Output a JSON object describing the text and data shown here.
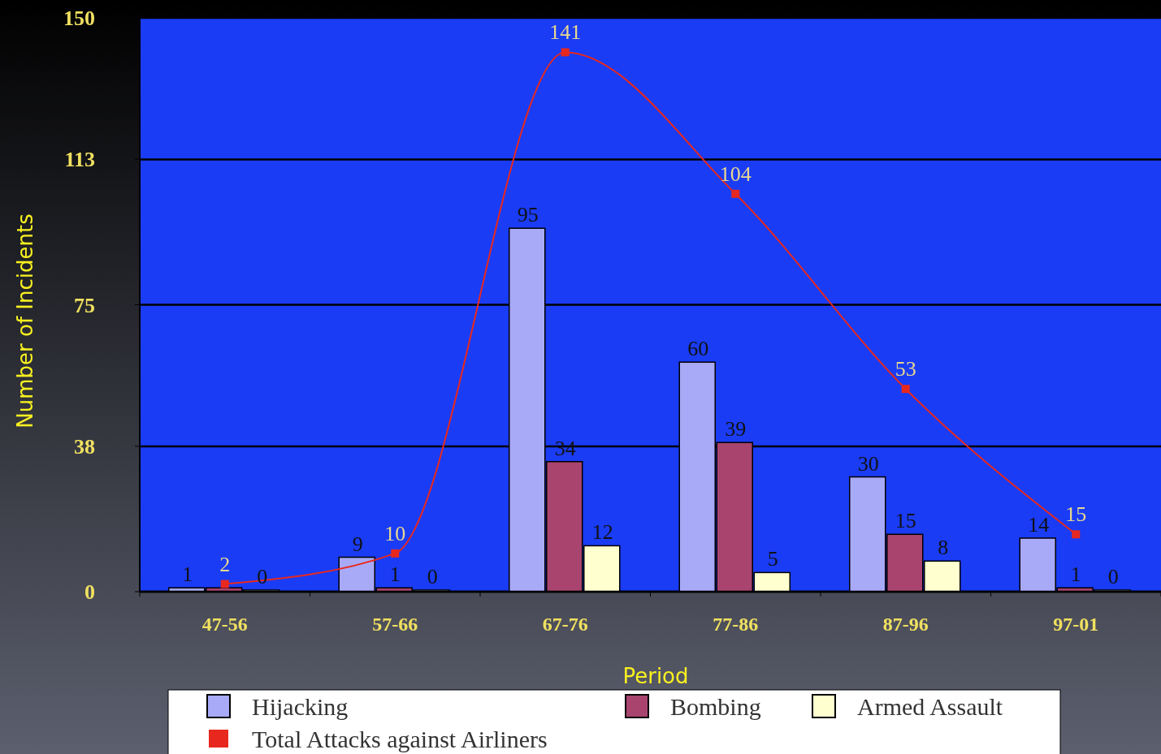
{
  "chart_data": {
    "type": "bar",
    "xlabel": "Period",
    "ylabel": "Number of Incidents",
    "categories": [
      "47-56",
      "57-66",
      "67-76",
      "77-86",
      "87-96",
      "97-01"
    ],
    "series": [
      {
        "name": "Hijacking",
        "color": "#a8aaf8",
        "values": [
          1,
          9,
          95,
          60,
          30,
          14
        ],
        "value_labels": [
          "1",
          "9",
          "95",
          "60",
          "30",
          "14"
        ]
      },
      {
        "name": "Bombing",
        "color": "#a8446e",
        "values": [
          1,
          1,
          34,
          39,
          15,
          1
        ],
        "value_labels": [
          null,
          "1",
          "34",
          "39",
          "15",
          "1"
        ]
      },
      {
        "name": "Armed Assault",
        "color": "#ffffd0",
        "values": [
          0,
          0,
          12,
          5,
          8,
          0
        ],
        "value_labels": [
          "0",
          "0",
          "12",
          "5",
          "8",
          "0"
        ]
      },
      {
        "name": "Total Attacks against Airliners",
        "type": "line",
        "color": "#e8281e",
        "values": [
          2,
          10,
          141,
          104,
          53,
          15
        ],
        "value_labels": [
          "2",
          "10",
          "141",
          "104",
          "53",
          "15"
        ]
      }
    ],
    "ylim": [
      0,
      150
    ],
    "yticks": [
      0,
      38,
      75,
      113,
      150
    ],
    "grid": "y",
    "legend": "bottom",
    "marker": "square",
    "line_style": "solid"
  }
}
